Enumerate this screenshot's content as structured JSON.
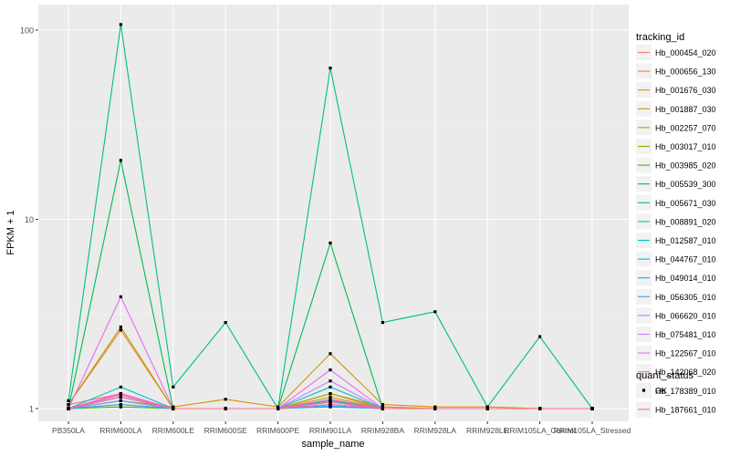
{
  "chart_data": {
    "type": "line",
    "xlabel": "sample_name",
    "ylabel": "FPKM + 1",
    "y_scale": "log10",
    "yticks": [
      1,
      10,
      100
    ],
    "ytick_labels": [
      "1",
      "10",
      "100"
    ],
    "grid": true,
    "legend_position": "right",
    "categories": [
      "PB350LA",
      "RRIM600LA",
      "RRIM600LE",
      "RRIM600SE",
      "RRIM600PE",
      "RRIM901LA",
      "RRIM928BA",
      "RRIM928LA",
      "RRIM928LE",
      "RRIM105LA_Control",
      "RRIM105LA_Stressed"
    ],
    "legend_title": "tracking_id",
    "series": [
      {
        "name": "Hb_000454_020",
        "color": "#F8766D",
        "values": [
          1.05,
          1.2,
          1.0,
          1.0,
          1.0,
          1.1,
          1.02,
          1.0,
          1.0,
          1.0,
          1.0
        ]
      },
      {
        "name": "Hb_000656_130",
        "color": "#EA8331",
        "values": [
          1.05,
          2.6,
          1.0,
          1.0,
          1.0,
          1.2,
          1.02,
          1.0,
          1.0,
          1.0,
          1.0
        ]
      },
      {
        "name": "Hb_001676_030",
        "color": "#D89000",
        "values": [
          1.0,
          1.1,
          1.02,
          1.12,
          1.02,
          1.95,
          1.05,
          1.02,
          1.02,
          1.0,
          1.0
        ]
      },
      {
        "name": "Hb_001887_030",
        "color": "#C09B00",
        "values": [
          1.05,
          2.7,
          1.0,
          1.0,
          1.0,
          1.15,
          1.0,
          1.0,
          1.0,
          1.0,
          1.0
        ]
      },
      {
        "name": "Hb_002257_070",
        "color": "#A3A500",
        "values": [
          1.0,
          1.05,
          1.0,
          1.0,
          1.0,
          1.2,
          1.0,
          1.0,
          1.0,
          1.0,
          1.0
        ]
      },
      {
        "name": "Hb_003017_010",
        "color": "#7CAE00",
        "values": [
          1.0,
          1.1,
          1.0,
          1.0,
          1.0,
          1.1,
          1.0,
          1.0,
          1.0,
          1.0,
          1.0
        ]
      },
      {
        "name": "Hb_003985_020",
        "color": "#39B600",
        "values": [
          1.0,
          1.02,
          1.0,
          1.0,
          1.0,
          1.05,
          1.0,
          1.0,
          1.0,
          1.0,
          1.0
        ]
      },
      {
        "name": "Hb_005539_300",
        "color": "#00BB4E",
        "values": [
          1.0,
          20.5,
          1.0,
          1.0,
          1.0,
          7.5,
          1.0,
          1.0,
          1.0,
          1.0,
          1.0
        ]
      },
      {
        "name": "Hb_005671_030",
        "color": "#00BF7D",
        "values": [
          1.1,
          107,
          1.3,
          2.85,
          1.0,
          63,
          2.85,
          3.25,
          1.02,
          2.4,
          1.0
        ]
      },
      {
        "name": "Hb_008891_020",
        "color": "#00C1A3",
        "values": [
          1.0,
          1.15,
          1.0,
          1.0,
          1.0,
          1.1,
          1.0,
          1.0,
          1.0,
          1.0,
          1.0
        ]
      },
      {
        "name": "Hb_012587_010",
        "color": "#00BFC4",
        "values": [
          1.0,
          1.3,
          1.0,
          1.0,
          1.0,
          1.3,
          1.0,
          1.0,
          1.0,
          1.0,
          1.0
        ]
      },
      {
        "name": "Hb_044767_010",
        "color": "#00BAE0",
        "values": [
          1.0,
          1.15,
          1.0,
          1.0,
          1.0,
          1.05,
          1.0,
          1.0,
          1.0,
          1.0,
          1.0
        ]
      },
      {
        "name": "Hb_049014_010",
        "color": "#00B0F6",
        "values": [
          1.0,
          1.1,
          1.0,
          1.0,
          1.0,
          1.02,
          1.0,
          1.0,
          1.0,
          1.0,
          1.0
        ]
      },
      {
        "name": "Hb_056305_010",
        "color": "#35A2FF",
        "values": [
          1.0,
          1.05,
          1.0,
          1.0,
          1.0,
          1.03,
          1.0,
          1.0,
          1.0,
          1.0,
          1.0
        ]
      },
      {
        "name": "Hb_066620_010",
        "color": "#9590FF",
        "values": [
          1.0,
          1.1,
          1.0,
          1.0,
          1.0,
          1.05,
          1.0,
          1.0,
          1.0,
          1.0,
          1.0
        ]
      },
      {
        "name": "Hb_075481_010",
        "color": "#C77CFF",
        "values": [
          1.0,
          1.2,
          1.0,
          1.0,
          1.0,
          1.4,
          1.0,
          1.0,
          1.0,
          1.0,
          1.0
        ]
      },
      {
        "name": "Hb_122567_010",
        "color": "#E76BF3",
        "values": [
          1.0,
          3.9,
          1.0,
          1.0,
          1.0,
          1.6,
          1.0,
          1.0,
          1.0,
          1.0,
          1.0
        ]
      },
      {
        "name": "Hb_142068_020",
        "color": "#FA62DB",
        "values": [
          1.0,
          1.2,
          1.0,
          1.0,
          1.0,
          1.12,
          1.0,
          1.0,
          1.0,
          1.0,
          1.0
        ]
      },
      {
        "name": "Hb_178389_010",
        "color": "#FF62BC",
        "values": [
          1.0,
          1.18,
          1.0,
          1.0,
          1.0,
          1.08,
          1.0,
          1.0,
          1.0,
          1.0,
          1.0
        ]
      },
      {
        "name": "Hb_187661_010",
        "color": "#FF6C91",
        "values": [
          1.0,
          1.15,
          1.0,
          1.0,
          1.0,
          1.05,
          1.0,
          1.0,
          1.0,
          1.0,
          1.0
        ]
      }
    ],
    "shape_legend": {
      "title": "quant_status",
      "items": [
        "OK"
      ]
    }
  }
}
